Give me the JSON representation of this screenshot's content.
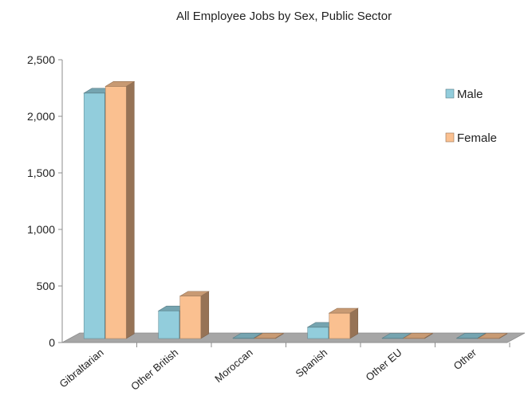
{
  "chart_data": {
    "type": "bar",
    "title": "All Employee Jobs by Sex, Public Sector",
    "categories": [
      "Gibraltarian",
      "Other British",
      "Moroccan",
      "Spanish",
      "Other EU",
      "Other"
    ],
    "series": [
      {
        "name": "Male",
        "values": [
          2170,
          245,
          5,
          100,
          3,
          4
        ],
        "color": "#92CDDC"
      },
      {
        "name": "Female",
        "values": [
          2230,
          375,
          4,
          225,
          5,
          2
        ],
        "color": "#FAC090"
      }
    ],
    "yticks": [
      "0",
      "500",
      "1,000",
      "1,500",
      "2,000",
      "2,500"
    ],
    "ylim": [
      0,
      2500
    ],
    "legend": "right",
    "grid": false,
    "style": "3d-clustered-column"
  }
}
